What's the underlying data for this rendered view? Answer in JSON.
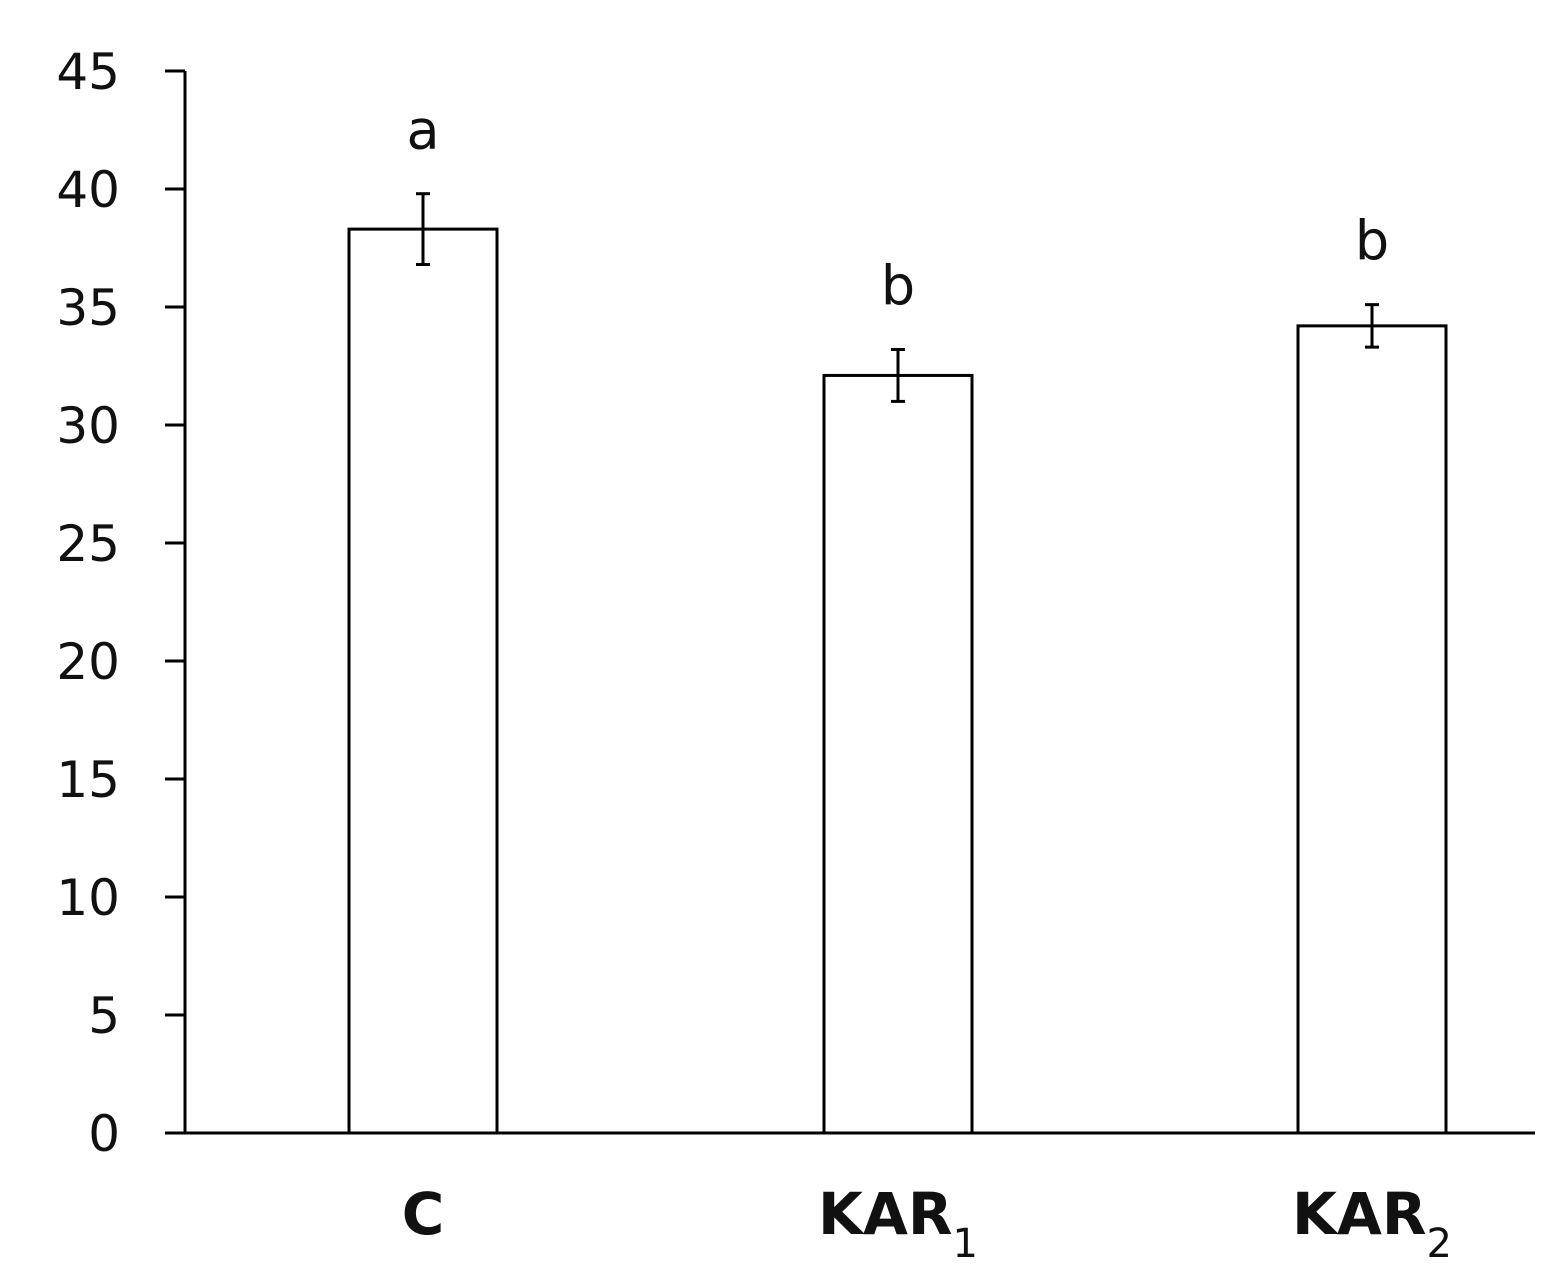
{
  "chart_data": {
    "type": "bar",
    "title": "",
    "xlabel": "",
    "ylabel": "",
    "ylim": [
      0,
      45
    ],
    "yticks": [
      0,
      5,
      10,
      15,
      20,
      25,
      30,
      35,
      40,
      45
    ],
    "grid": false,
    "legend": "none",
    "bar_fill": "#ffffff",
    "bar_stroke": "#000000",
    "categories": [
      {
        "base": "C",
        "sub": ""
      },
      {
        "base": "KAR",
        "sub": "1"
      },
      {
        "base": "KAR",
        "sub": "2"
      }
    ],
    "values": [
      38.3,
      32.1,
      34.2
    ],
    "errors": [
      1.5,
      1.1,
      0.9
    ],
    "significance": [
      "a",
      "b",
      "b"
    ]
  }
}
